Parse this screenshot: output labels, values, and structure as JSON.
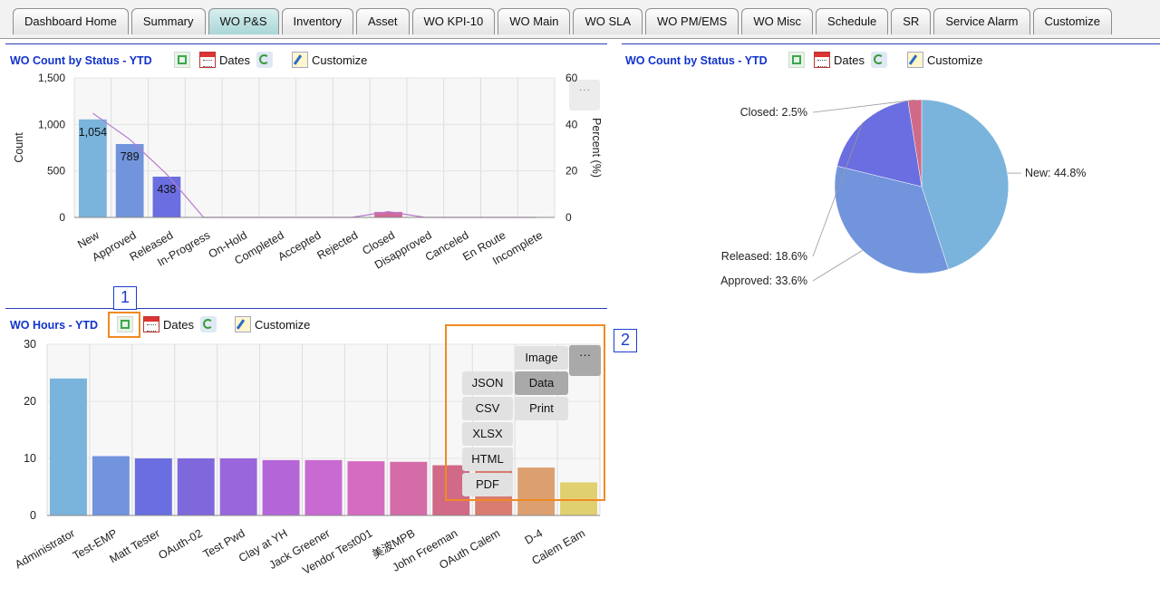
{
  "tabs": [
    "Dashboard Home",
    "Summary",
    "WO P&S",
    "Inventory",
    "Asset",
    "WO KPI-10",
    "WO Main",
    "WO SLA",
    "WO PM/EMS",
    "WO Misc",
    "Schedule",
    "SR",
    "Service Alarm",
    "Customize"
  ],
  "active_tab": "WO P&S",
  "toolbar": {
    "dates_label": "Dates",
    "customize_label": "Customize",
    "more_label": "···"
  },
  "panels": {
    "status_bar": {
      "title": "WO Count by Status - YTD"
    },
    "status_pie": {
      "title": "WO Count by Status - YTD"
    },
    "hours": {
      "title": "WO Hours - YTD"
    }
  },
  "export_menu": {
    "image": "Image",
    "data": "Data",
    "print": "Print",
    "json": "JSON",
    "csv": "CSV",
    "xlsx": "XLSX",
    "html": "HTML",
    "pdf": "PDF"
  },
  "annotations": [
    "1",
    "2"
  ],
  "colors": {
    "tab_active": "#b7dede",
    "title_blue": "#1233cc",
    "marker_orange": "#f08a24",
    "marker_blue": "#1a3ed0"
  },
  "chart_data": [
    {
      "type": "bar",
      "categories": [
        "New",
        "Approved",
        "Released",
        "In-Progress",
        "On-Hold",
        "Completed",
        "Accepted",
        "Rejected",
        "Closed",
        "Disapproved",
        "Canceled",
        "En Route",
        "Incomplete"
      ],
      "values": [
        1054,
        789,
        438,
        0,
        0,
        0,
        0,
        0,
        59,
        0,
        0,
        0,
        0
      ],
      "data_labels": [
        "1,054",
        "789",
        "438",
        "",
        "",
        "",
        "",
        "",
        "",
        "",
        "",
        "",
        ""
      ],
      "ylabel": "Count",
      "y2label": "Percent (%)",
      "ylim": [
        0,
        1500
      ],
      "yticks": [
        "0",
        "500",
        "1,000",
        "1,500"
      ],
      "y2lim": [
        0,
        60
      ],
      "y2ticks": [
        "0",
        "20",
        "40",
        "60"
      ],
      "percent_line": [
        44.8,
        33.6,
        18.6,
        0,
        0,
        0,
        0,
        0,
        2.5,
        0,
        0,
        0,
        0
      ],
      "colors": [
        "#7ab4dc",
        "#7294dc",
        "#6a6ee0",
        "#8a66dc",
        "#a866dc",
        "#c06ad8",
        "#d06cc8",
        "#d46cb0",
        "#d06a9a",
        "#d06a86",
        "#d87c70",
        "#dca070",
        "#e0c870"
      ],
      "grid": true
    },
    {
      "type": "pie",
      "labels": [
        "New: 44.8%",
        "Approved: 33.6%",
        "Released: 18.6%",
        "Closed: 2.5%"
      ],
      "values": [
        44.8,
        33.6,
        18.6,
        2.5
      ],
      "colors": [
        "#7ab4dc",
        "#7294dc",
        "#6a6ee0",
        "#d06a86"
      ]
    },
    {
      "type": "bar",
      "categories": [
        "Administrator",
        "Test-EMP",
        "Matt Tester",
        "OAuth-02",
        "Test Pwd",
        "Clay at YH",
        "Jack Greener",
        "Vendor Test001",
        "美波MPB",
        "John Freeman",
        "OAuth Calem",
        "D-4",
        "Calem Eam"
      ],
      "values": [
        24,
        10.4,
        10,
        10,
        10,
        9.7,
        9.7,
        9.5,
        9.4,
        8.8,
        8.1,
        8.4,
        5.8
      ],
      "ylim": [
        0,
        30
      ],
      "yticks": [
        "0",
        "10",
        "20",
        "30"
      ],
      "colors": [
        "#7ab4dc",
        "#7294dc",
        "#6a6ee0",
        "#7e68dc",
        "#9a66dc",
        "#b466d8",
        "#c86ad2",
        "#d66cc2",
        "#d46ca8",
        "#d06a86",
        "#d87c70",
        "#dca070",
        "#e0d070"
      ],
      "grid": true
    }
  ]
}
